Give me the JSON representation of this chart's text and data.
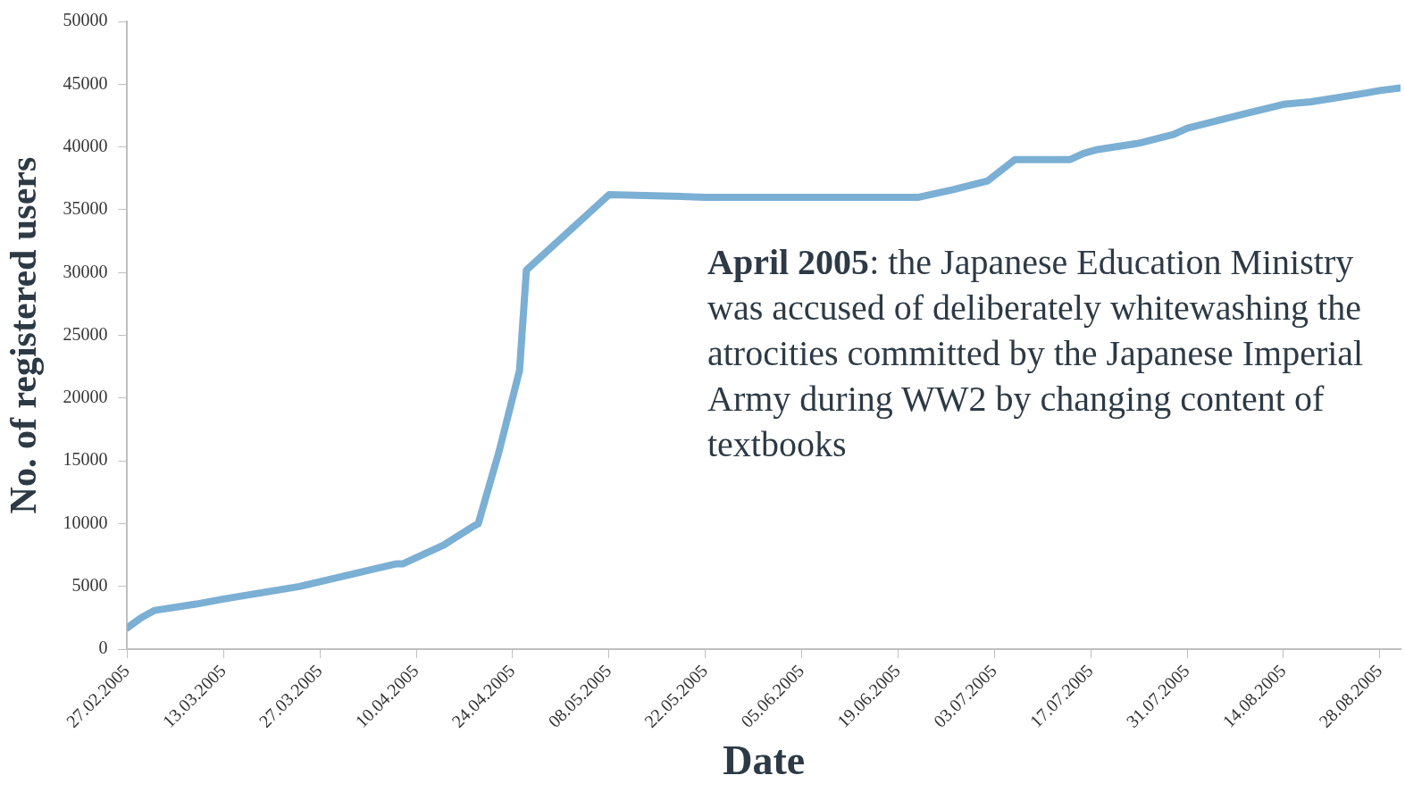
{
  "chart_data": {
    "type": "line",
    "xlabel": "Date",
    "ylabel": "No. of registered users",
    "annotations": [
      "April 2005: the Japanese Education Ministry was accused of deliberately whitewashing the atrocities committed by the Japanese Imperial Army during WW2 by changing content of textbooks"
    ],
    "x": [
      "2005-02-27",
      "2005-03-01",
      "2005-03-03",
      "2005-03-09",
      "2005-03-13",
      "2005-03-24",
      "2005-04-07",
      "2005-04-08",
      "2005-04-14",
      "2005-04-18",
      "2005-04-19",
      "2005-04-22",
      "2005-04-25",
      "2005-04-26",
      "2005-05-08",
      "2005-05-16",
      "2005-05-22",
      "2005-06-22",
      "2005-06-27",
      "2005-07-02",
      "2005-07-06",
      "2005-07-14",
      "2005-07-16",
      "2005-07-18",
      "2005-07-24",
      "2005-07-29",
      "2005-07-31",
      "2005-08-08",
      "2005-08-14",
      "2005-08-18",
      "2005-08-26",
      "2005-08-28",
      "2005-08-31"
    ],
    "series": [
      {
        "color": "#7bafd4",
        "values": [
          1700,
          2500,
          3100,
          3600,
          4000,
          5000,
          6800,
          6800,
          8300,
          9700,
          10000,
          15700,
          22200,
          30200,
          36200,
          36100,
          36000,
          36000,
          36600,
          37300,
          39000,
          39000,
          39500,
          39800,
          40300,
          41000,
          41500,
          42600,
          43400,
          43600,
          44300,
          44500,
          44700
        ]
      }
    ],
    "xlim": [
      "2005-02-27",
      "2005-08-31"
    ],
    "xticks": [
      {
        "value": "2005-02-27",
        "label": "27.02.2005"
      },
      {
        "value": "2005-03-13",
        "label": "13.03.2005"
      },
      {
        "value": "2005-03-27",
        "label": "27.03.2005"
      },
      {
        "value": "2005-04-10",
        "label": "10.04.2005"
      },
      {
        "value": "2005-04-24",
        "label": "24.04.2005"
      },
      {
        "value": "2005-05-08",
        "label": "08.05.2005"
      },
      {
        "value": "2005-05-22",
        "label": "22.05.2005"
      },
      {
        "value": "2005-06-05",
        "label": "05.06.2005"
      },
      {
        "value": "2005-06-19",
        "label": "19.06.2005"
      },
      {
        "value": "2005-07-03",
        "label": "03.07.2005"
      },
      {
        "value": "2005-07-17",
        "label": "17.07.2005"
      },
      {
        "value": "2005-07-31",
        "label": "31.07.2005"
      },
      {
        "value": "2005-08-14",
        "label": "14.08.2005"
      },
      {
        "value": "2005-08-28",
        "label": "28.08.2005"
      }
    ],
    "ylim": [
      0,
      50000
    ],
    "yticks": [
      0,
      5000,
      10000,
      15000,
      20000,
      25000,
      30000,
      35000,
      40000,
      45000,
      50000
    ],
    "grid": false,
    "legend": false,
    "marker": "none",
    "line_style": "solid"
  }
}
